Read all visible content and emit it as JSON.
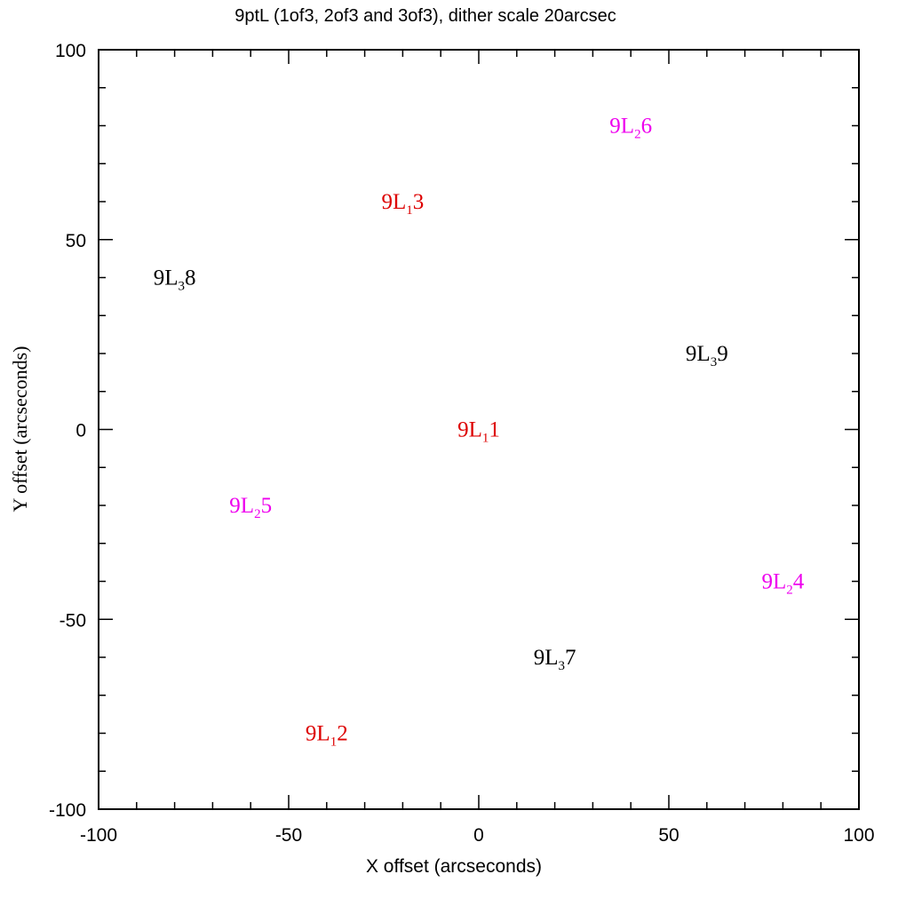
{
  "chart_data": {
    "type": "scatter",
    "title": "9ptL (1of3, 2of3 and 3of3), dither scale 20arcsec",
    "xlabel": "X offset (arcseconds)",
    "ylabel": "Y offset (arcseconds)",
    "xlim": [
      -100,
      100
    ],
    "ylim": [
      -100,
      100
    ],
    "x_ticks": [
      -100,
      -50,
      0,
      50,
      100
    ],
    "y_ticks": [
      -100,
      -50,
      0,
      50,
      100
    ],
    "x_tick_labels": [
      "-100",
      "-50",
      "0",
      "50",
      "100"
    ],
    "y_tick_labels": [
      "-100",
      "-50",
      "0",
      "50",
      "100"
    ],
    "minor_tick_step": 10,
    "grid": false,
    "points": [
      {
        "label": "9L",
        "subscript": "1",
        "suffix": "1",
        "x": 0,
        "y": 0,
        "color": "#dd0000"
      },
      {
        "label": "9L",
        "subscript": "1",
        "suffix": "2",
        "x": -40,
        "y": -80,
        "color": "#dd0000"
      },
      {
        "label": "9L",
        "subscript": "1",
        "suffix": "3",
        "x": -20,
        "y": 60,
        "color": "#dd0000"
      },
      {
        "label": "9L",
        "subscript": "2",
        "suffix": "4",
        "x": 80,
        "y": -40,
        "color": "#ee00ee"
      },
      {
        "label": "9L",
        "subscript": "2",
        "suffix": "5",
        "x": -60,
        "y": -20,
        "color": "#ee00ee"
      },
      {
        "label": "9L",
        "subscript": "2",
        "suffix": "6",
        "x": 40,
        "y": 80,
        "color": "#ee00ee"
      },
      {
        "label": "9L",
        "subscript": "3",
        "suffix": "7",
        "x": 20,
        "y": -60,
        "color": "#000000"
      },
      {
        "label": "9L",
        "subscript": "3",
        "suffix": "8",
        "x": -80,
        "y": 40,
        "color": "#000000"
      },
      {
        "label": "9L",
        "subscript": "3",
        "suffix": "9",
        "x": 60,
        "y": 20,
        "color": "#000000"
      }
    ]
  }
}
